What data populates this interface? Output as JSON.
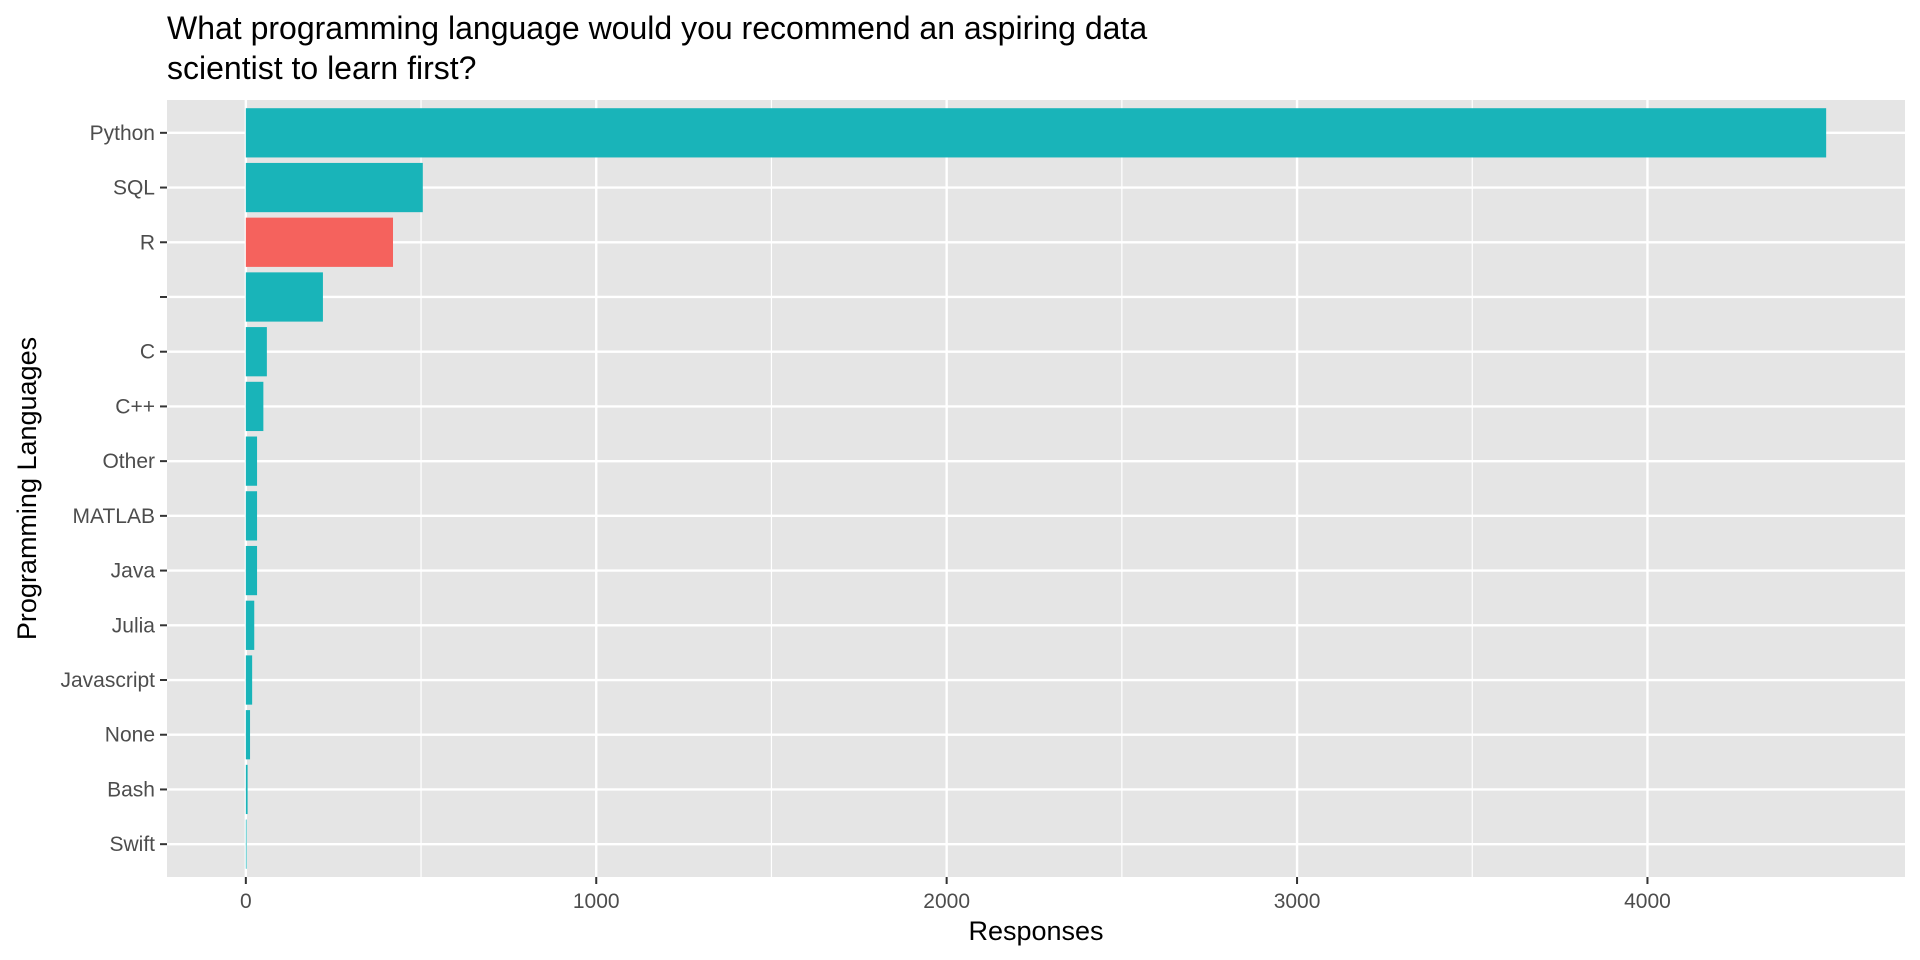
{
  "chart_data": {
    "type": "bar",
    "orientation": "horizontal",
    "title": "What programming language would you recommend an aspiring data scientist to learn first?",
    "xlabel": "Responses",
    "ylabel": "Programming Languages",
    "categories": [
      "Python",
      "SQL",
      "R",
      "",
      "C",
      "C++",
      "Other",
      "MATLAB",
      "Java",
      "Julia",
      "Javascript",
      "None",
      "Bash",
      "Swift"
    ],
    "values": [
      4510,
      505,
      420,
      220,
      60,
      50,
      32,
      32,
      32,
      24,
      18,
      12,
      5,
      2
    ],
    "highlight_category": "R",
    "xlim": [
      -225,
      4735
    ],
    "xticks": [
      0,
      1000,
      2000,
      3000,
      4000
    ],
    "grid": true,
    "legend": "none",
    "colors": {
      "bar": "#19B4B9",
      "highlight": "#F5625D",
      "panel": "#E5E5E5",
      "grid": "#FFFFFF"
    }
  }
}
